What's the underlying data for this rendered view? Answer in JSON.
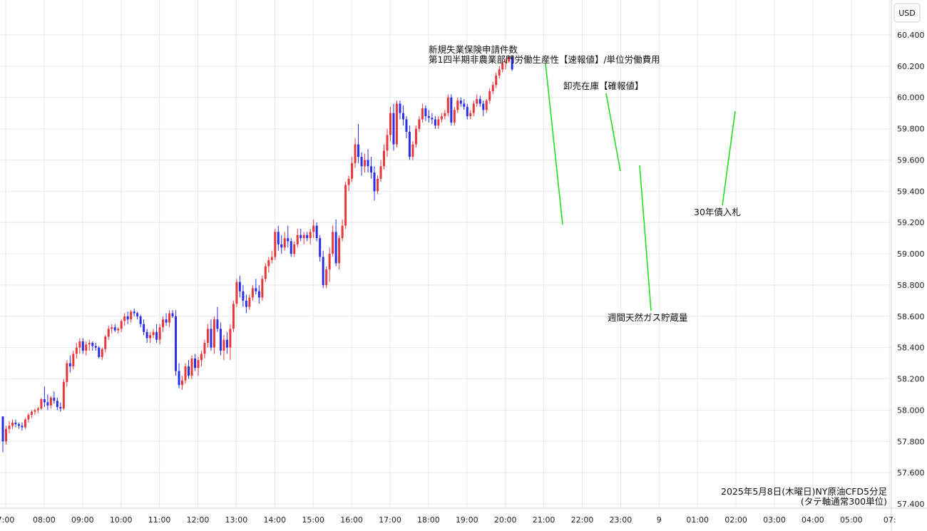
{
  "chart_data": {
    "type": "candlestick",
    "currency_label": "USD",
    "y_ticks": [
      "60.400",
      "60.200",
      "60.000",
      "59.800",
      "59.600",
      "59.400",
      "59.200",
      "59.000",
      "58.800",
      "58.600",
      "58.400",
      "58.200",
      "58.000",
      "57.800",
      "57.600",
      "57.400"
    ],
    "ylim": [
      57.4,
      60.4
    ],
    "x_ticks": [
      "7:00",
      "08:00",
      "09:00",
      "10:00",
      "11:00",
      "12:00",
      "13:00",
      "14:00",
      "15:00",
      "16:00",
      "17:00",
      "18:00",
      "19:00",
      "20:00",
      "21:00",
      "22:00",
      "23:00",
      "9",
      "01:00",
      "02:00",
      "03:00",
      "04:00",
      "05:00",
      "07:"
    ],
    "up_color": "#e8373b",
    "down_color": "#2a2ee6",
    "grid": true,
    "annotation_color": "#22dd22",
    "annotations": [
      {
        "lines": [
          "新規失業保険申請件数",
          "第1四半期非農業部門労働生産性【速報値】/単位労働費用"
        ],
        "time": "21:30"
      },
      {
        "lines": [
          "卸売在庫【確報値】"
        ],
        "time": "23:00"
      },
      {
        "lines": [
          "週間天然ガス貯蔵量"
        ],
        "time": "23:30"
      },
      {
        "lines": [
          "30年債入札"
        ],
        "time": "02:00"
      }
    ],
    "footnote_lines": [
      "2025年5月8日(木曜日)NY原油CFD5分足",
      "(タテ軸通常300単位)"
    ],
    "ohlc": [
      [
        57.96,
        57.96,
        57.73,
        57.8
      ],
      [
        57.8,
        57.9,
        57.78,
        57.88
      ],
      [
        57.88,
        57.93,
        57.85,
        57.9
      ],
      [
        57.9,
        57.94,
        57.88,
        57.92
      ],
      [
        57.92,
        57.94,
        57.89,
        57.91
      ],
      [
        57.91,
        57.92,
        57.88,
        57.9
      ],
      [
        57.9,
        57.92,
        57.87,
        57.89
      ],
      [
        57.89,
        57.95,
        57.88,
        57.94
      ],
      [
        57.94,
        57.98,
        57.92,
        57.97
      ],
      [
        57.97,
        58.0,
        57.95,
        57.99
      ],
      [
        57.99,
        58.01,
        57.97,
        58.0
      ],
      [
        58.0,
        58.02,
        57.98,
        58.01
      ],
      [
        58.01,
        58.08,
        58.0,
        58.07
      ],
      [
        58.07,
        58.15,
        58.02,
        58.05
      ],
      [
        58.05,
        58.1,
        58.0,
        58.03
      ],
      [
        58.03,
        58.09,
        58.01,
        58.08
      ],
      [
        58.08,
        58.12,
        58.04,
        58.06
      ],
      [
        58.06,
        58.08,
        58.0,
        58.02
      ],
      [
        58.02,
        58.05,
        57.99,
        58.01
      ],
      [
        58.01,
        58.2,
        58.0,
        58.18
      ],
      [
        58.18,
        58.32,
        58.15,
        58.3
      ],
      [
        58.3,
        58.35,
        58.24,
        58.28
      ],
      [
        58.28,
        58.38,
        58.26,
        58.36
      ],
      [
        58.36,
        58.43,
        58.33,
        58.4
      ],
      [
        58.4,
        58.46,
        58.36,
        58.44
      ],
      [
        58.44,
        58.46,
        58.36,
        58.38
      ],
      [
        58.38,
        58.44,
        58.35,
        58.42
      ],
      [
        58.42,
        58.45,
        58.38,
        58.43
      ],
      [
        58.43,
        58.44,
        58.38,
        58.41
      ],
      [
        58.41,
        58.43,
        58.38,
        58.4
      ],
      [
        58.4,
        58.41,
        58.33,
        58.34
      ],
      [
        58.34,
        58.4,
        58.32,
        58.39
      ],
      [
        58.39,
        58.48,
        58.37,
        58.47
      ],
      [
        58.47,
        58.54,
        58.45,
        58.52
      ],
      [
        58.52,
        58.55,
        58.49,
        58.53
      ],
      [
        58.53,
        58.55,
        58.5,
        58.51
      ],
      [
        58.51,
        58.53,
        58.49,
        58.52
      ],
      [
        58.52,
        58.58,
        58.5,
        58.57
      ],
      [
        58.57,
        58.62,
        58.54,
        58.6
      ],
      [
        58.6,
        58.63,
        58.55,
        58.58
      ],
      [
        58.58,
        58.64,
        58.56,
        58.63
      ],
      [
        58.63,
        58.65,
        58.6,
        58.62
      ],
      [
        58.62,
        58.63,
        58.58,
        58.6
      ],
      [
        58.6,
        58.61,
        58.53,
        58.55
      ],
      [
        58.55,
        58.58,
        58.48,
        58.5
      ],
      [
        58.5,
        58.52,
        58.43,
        58.46
      ],
      [
        58.46,
        58.5,
        58.43,
        58.48
      ],
      [
        58.48,
        58.52,
        58.46,
        58.5
      ],
      [
        58.5,
        58.55,
        58.43,
        58.45
      ],
      [
        58.45,
        58.55,
        58.42,
        58.53
      ],
      [
        58.53,
        58.6,
        58.5,
        58.58
      ],
      [
        58.58,
        58.62,
        58.54,
        58.56
      ],
      [
        58.56,
        58.64,
        58.53,
        58.62
      ],
      [
        58.62,
        58.64,
        58.59,
        58.6
      ],
      [
        58.6,
        58.64,
        58.22,
        58.25
      ],
      [
        58.25,
        58.3,
        58.14,
        58.16
      ],
      [
        58.16,
        58.22,
        58.13,
        58.19
      ],
      [
        58.19,
        58.3,
        58.17,
        58.28
      ],
      [
        58.28,
        58.32,
        58.2,
        58.22
      ],
      [
        58.22,
        58.35,
        58.2,
        58.33
      ],
      [
        58.33,
        58.36,
        58.25,
        58.27
      ],
      [
        58.27,
        58.34,
        58.22,
        58.32
      ],
      [
        58.32,
        58.38,
        58.28,
        58.36
      ],
      [
        58.36,
        58.45,
        58.33,
        58.43
      ],
      [
        58.43,
        58.55,
        58.4,
        58.52
      ],
      [
        58.52,
        58.58,
        58.38,
        58.4
      ],
      [
        58.4,
        58.6,
        58.36,
        58.58
      ],
      [
        58.58,
        58.66,
        58.5,
        58.52
      ],
      [
        58.52,
        58.56,
        58.35,
        58.38
      ],
      [
        58.38,
        58.48,
        58.32,
        58.45
      ],
      [
        58.45,
        58.5,
        58.36,
        58.4
      ],
      [
        58.4,
        58.55,
        58.32,
        58.52
      ],
      [
        58.52,
        58.7,
        58.5,
        58.68
      ],
      [
        58.68,
        58.84,
        58.66,
        58.82
      ],
      [
        58.82,
        58.86,
        58.72,
        58.76
      ],
      [
        58.76,
        58.8,
        58.66,
        58.7
      ],
      [
        58.7,
        58.74,
        58.62,
        58.66
      ],
      [
        58.66,
        58.74,
        58.64,
        58.72
      ],
      [
        58.72,
        58.8,
        58.7,
        58.78
      ],
      [
        58.78,
        58.84,
        58.74,
        58.76
      ],
      [
        58.76,
        58.8,
        58.68,
        58.72
      ],
      [
        58.72,
        58.86,
        58.7,
        58.84
      ],
      [
        58.84,
        58.94,
        58.82,
        58.92
      ],
      [
        58.92,
        58.98,
        58.88,
        58.96
      ],
      [
        58.96,
        59.02,
        58.94,
        58.98
      ],
      [
        58.98,
        59.16,
        58.96,
        59.14
      ],
      [
        59.14,
        59.18,
        59.02,
        59.06
      ],
      [
        59.06,
        59.12,
        59.0,
        59.04
      ],
      [
        59.04,
        59.14,
        59.02,
        59.1
      ],
      [
        59.1,
        59.18,
        59.04,
        59.08
      ],
      [
        59.08,
        59.1,
        58.98,
        59.0
      ],
      [
        59.0,
        59.08,
        58.98,
        59.06
      ],
      [
        59.06,
        59.16,
        59.04,
        59.12
      ],
      [
        59.12,
        59.16,
        59.08,
        59.1
      ],
      [
        59.1,
        59.14,
        59.06,
        59.12
      ],
      [
        59.12,
        59.14,
        59.08,
        59.1
      ],
      [
        59.1,
        59.16,
        59.06,
        59.14
      ],
      [
        59.14,
        59.22,
        59.1,
        59.18
      ],
      [
        59.18,
        59.2,
        59.08,
        59.1
      ],
      [
        59.1,
        59.12,
        58.95,
        58.98
      ],
      [
        58.98,
        59.02,
        58.78,
        58.8
      ],
      [
        58.8,
        58.92,
        58.78,
        58.9
      ],
      [
        58.9,
        59.04,
        58.82,
        59.0
      ],
      [
        59.0,
        59.18,
        58.98,
        59.14
      ],
      [
        59.14,
        59.22,
        58.92,
        58.94
      ],
      [
        58.94,
        59.12,
        58.9,
        59.1
      ],
      [
        59.1,
        59.22,
        59.08,
        59.18
      ],
      [
        59.18,
        59.46,
        59.16,
        59.44
      ],
      [
        59.44,
        59.5,
        59.4,
        59.48
      ],
      [
        59.48,
        59.62,
        59.46,
        59.58
      ],
      [
        59.58,
        59.74,
        59.55,
        59.7
      ],
      [
        59.7,
        59.83,
        59.58,
        59.62
      ],
      [
        59.62,
        59.65,
        59.5,
        59.56
      ],
      [
        59.56,
        59.64,
        59.52,
        59.6
      ],
      [
        59.6,
        59.67,
        59.52,
        59.56
      ],
      [
        59.56,
        59.62,
        59.48,
        59.52
      ],
      [
        59.52,
        59.56,
        59.34,
        59.4
      ],
      [
        59.4,
        59.5,
        59.38,
        59.48
      ],
      [
        59.48,
        59.6,
        59.46,
        59.56
      ],
      [
        59.56,
        59.7,
        59.54,
        59.66
      ],
      [
        59.66,
        59.8,
        59.62,
        59.76
      ],
      [
        59.76,
        59.94,
        59.72,
        59.9
      ],
      [
        59.9,
        59.96,
        59.66,
        59.7
      ],
      [
        59.7,
        59.98,
        59.68,
        59.96
      ],
      [
        59.96,
        59.98,
        59.86,
        59.9
      ],
      [
        59.9,
        59.95,
        59.82,
        59.86
      ],
      [
        59.86,
        59.88,
        59.74,
        59.78
      ],
      [
        59.78,
        59.82,
        59.6,
        59.62
      ],
      [
        59.62,
        59.72,
        59.6,
        59.7
      ],
      [
        59.7,
        59.82,
        59.68,
        59.8
      ],
      [
        59.8,
        59.88,
        59.78,
        59.86
      ],
      [
        59.86,
        59.96,
        59.84,
        59.93
      ],
      [
        59.93,
        59.95,
        59.85,
        59.88
      ],
      [
        59.88,
        59.92,
        59.84,
        59.87
      ],
      [
        59.87,
        59.9,
        59.83,
        59.86
      ],
      [
        59.86,
        59.88,
        59.8,
        59.82
      ],
      [
        59.82,
        59.88,
        59.8,
        59.86
      ],
      [
        59.86,
        59.9,
        59.84,
        59.88
      ],
      [
        59.88,
        59.92,
        59.86,
        59.9
      ],
      [
        59.9,
        60.02,
        59.88,
        60.0
      ],
      [
        60.0,
        60.02,
        59.82,
        59.84
      ],
      [
        59.84,
        59.94,
        59.82,
        59.92
      ],
      [
        59.92,
        60.0,
        59.9,
        59.98
      ],
      [
        59.98,
        60.0,
        59.94,
        59.96
      ],
      [
        59.96,
        59.99,
        59.92,
        59.94
      ],
      [
        59.94,
        59.96,
        59.86,
        59.88
      ],
      [
        59.88,
        59.92,
        59.86,
        59.9
      ],
      [
        59.9,
        59.98,
        59.88,
        59.96
      ],
      [
        59.96,
        60.02,
        59.94,
        59.99
      ],
      [
        59.99,
        60.01,
        59.94,
        59.96
      ],
      [
        59.96,
        59.98,
        59.88,
        59.92
      ],
      [
        59.92,
        59.99,
        59.9,
        59.98
      ],
      [
        59.98,
        60.06,
        59.96,
        60.04
      ],
      [
        60.04,
        60.1,
        60.02,
        60.08
      ],
      [
        60.08,
        60.16,
        60.06,
        60.14
      ],
      [
        60.14,
        60.2,
        60.12,
        60.18
      ],
      [
        60.18,
        60.24,
        60.16,
        60.22
      ],
      [
        60.22,
        60.25,
        60.18,
        60.23
      ],
      [
        60.23,
        60.27,
        60.22,
        60.26
      ],
      [
        60.26,
        60.27,
        60.17,
        60.18
      ]
    ]
  }
}
